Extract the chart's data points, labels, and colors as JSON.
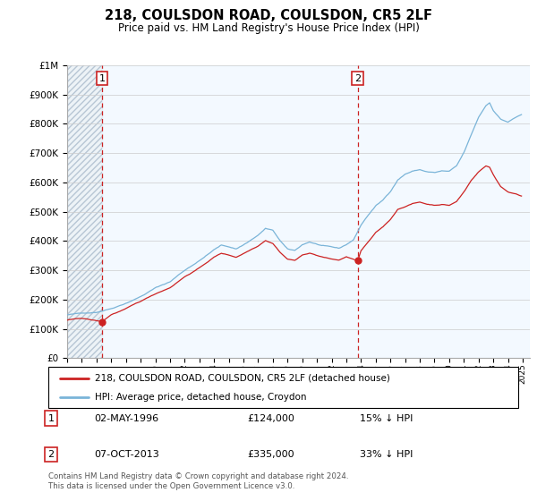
{
  "title": "218, COULSDON ROAD, COULSDON, CR5 2LF",
  "subtitle": "Price paid vs. HM Land Registry's House Price Index (HPI)",
  "hpi_label": "HPI: Average price, detached house, Croydon",
  "price_label": "218, COULSDON ROAD, COULSDON, CR5 2LF (detached house)",
  "annotation1_date": "02-MAY-1996",
  "annotation1_price": "£124,000",
  "annotation1_pct": "15% ↓ HPI",
  "annotation2_date": "07-OCT-2013",
  "annotation2_price": "£335,000",
  "annotation2_pct": "33% ↓ HPI",
  "footnote": "Contains HM Land Registry data © Crown copyright and database right 2024.\nThis data is licensed under the Open Government Licence v3.0.",
  "hpi_color": "#7ab4d8",
  "price_color": "#cc2222",
  "annotation_box_color": "#cc2222",
  "hatch_color": "#c8d8e8",
  "light_blue_bg": "#ddeeff",
  "ylim": [
    0,
    1000000
  ],
  "xlim_start": 1994.0,
  "xlim_end": 2025.5,
  "purchase1_year": 1996.37,
  "purchase1_price": 124000,
  "purchase2_year": 2013.77,
  "purchase2_price": 335000
}
